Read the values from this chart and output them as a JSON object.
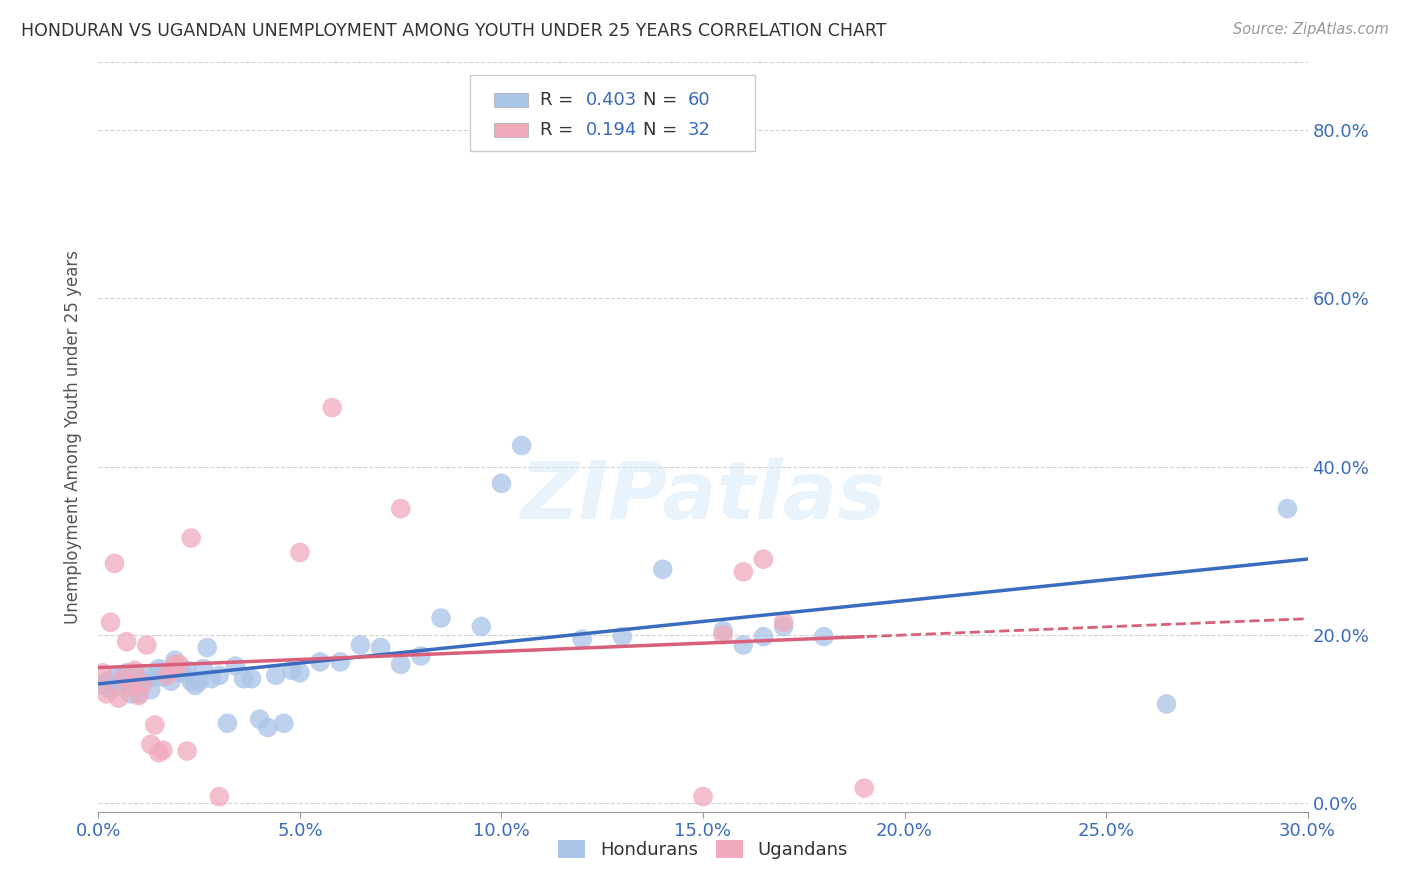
{
  "title": "HONDURAN VS UGANDAN UNEMPLOYMENT AMONG YOUTH UNDER 25 YEARS CORRELATION CHART",
  "source": "Source: ZipAtlas.com",
  "ylabel": "Unemployment Among Youth under 25 years",
  "xlim": [
    0.0,
    0.3
  ],
  "ylim": [
    -0.01,
    0.88
  ],
  "xticks": [
    0.0,
    0.05,
    0.1,
    0.15,
    0.2,
    0.25,
    0.3
  ],
  "yticks": [
    0.0,
    0.2,
    0.4,
    0.6,
    0.8
  ],
  "background_color": "#ffffff",
  "grid_color": "#cccccc",
  "blue_color": "#aac4e8",
  "pink_color": "#f0aabb",
  "blue_line_color": "#3a6bbf",
  "pink_line_color": "#d9607a",
  "watermark": "ZIPatlas",
  "legend_R_blue": "0.403",
  "legend_N_blue": "60",
  "legend_R_pink": "0.194",
  "legend_N_pink": "32",
  "blue_x": [
    0.001,
    0.002,
    0.003,
    0.004,
    0.005,
    0.006,
    0.007,
    0.007,
    0.008,
    0.009,
    0.01,
    0.011,
    0.012,
    0.013,
    0.014,
    0.015,
    0.016,
    0.017,
    0.018,
    0.019,
    0.02,
    0.021,
    0.022,
    0.023,
    0.024,
    0.025,
    0.026,
    0.027,
    0.028,
    0.03,
    0.032,
    0.034,
    0.036,
    0.038,
    0.04,
    0.042,
    0.044,
    0.046,
    0.048,
    0.05,
    0.055,
    0.06,
    0.065,
    0.07,
    0.075,
    0.08,
    0.085,
    0.095,
    0.1,
    0.105,
    0.12,
    0.13,
    0.14,
    0.155,
    0.16,
    0.165,
    0.17,
    0.18,
    0.265,
    0.295
  ],
  "blue_y": [
    0.14,
    0.145,
    0.135,
    0.15,
    0.14,
    0.15,
    0.145,
    0.155,
    0.13,
    0.155,
    0.13,
    0.145,
    0.15,
    0.135,
    0.15,
    0.16,
    0.15,
    0.155,
    0.145,
    0.17,
    0.155,
    0.155,
    0.158,
    0.145,
    0.14,
    0.145,
    0.16,
    0.185,
    0.148,
    0.152,
    0.095,
    0.163,
    0.148,
    0.148,
    0.1,
    0.09,
    0.152,
    0.095,
    0.158,
    0.155,
    0.168,
    0.168,
    0.188,
    0.185,
    0.165,
    0.175,
    0.22,
    0.21,
    0.38,
    0.425,
    0.195,
    0.198,
    0.278,
    0.205,
    0.188,
    0.198,
    0.21,
    0.198,
    0.118,
    0.35
  ],
  "pink_x": [
    0.001,
    0.002,
    0.003,
    0.004,
    0.005,
    0.006,
    0.007,
    0.008,
    0.009,
    0.01,
    0.011,
    0.012,
    0.013,
    0.014,
    0.015,
    0.016,
    0.017,
    0.018,
    0.019,
    0.02,
    0.022,
    0.023,
    0.03,
    0.05,
    0.058,
    0.075,
    0.15,
    0.155,
    0.16,
    0.165,
    0.17,
    0.19
  ],
  "pink_y": [
    0.155,
    0.13,
    0.215,
    0.285,
    0.125,
    0.148,
    0.192,
    0.138,
    0.158,
    0.128,
    0.142,
    0.188,
    0.07,
    0.093,
    0.06,
    0.063,
    0.152,
    0.158,
    0.165,
    0.165,
    0.062,
    0.315,
    0.008,
    0.298,
    0.47,
    0.35,
    0.008,
    0.2,
    0.275,
    0.29,
    0.215,
    0.018
  ]
}
